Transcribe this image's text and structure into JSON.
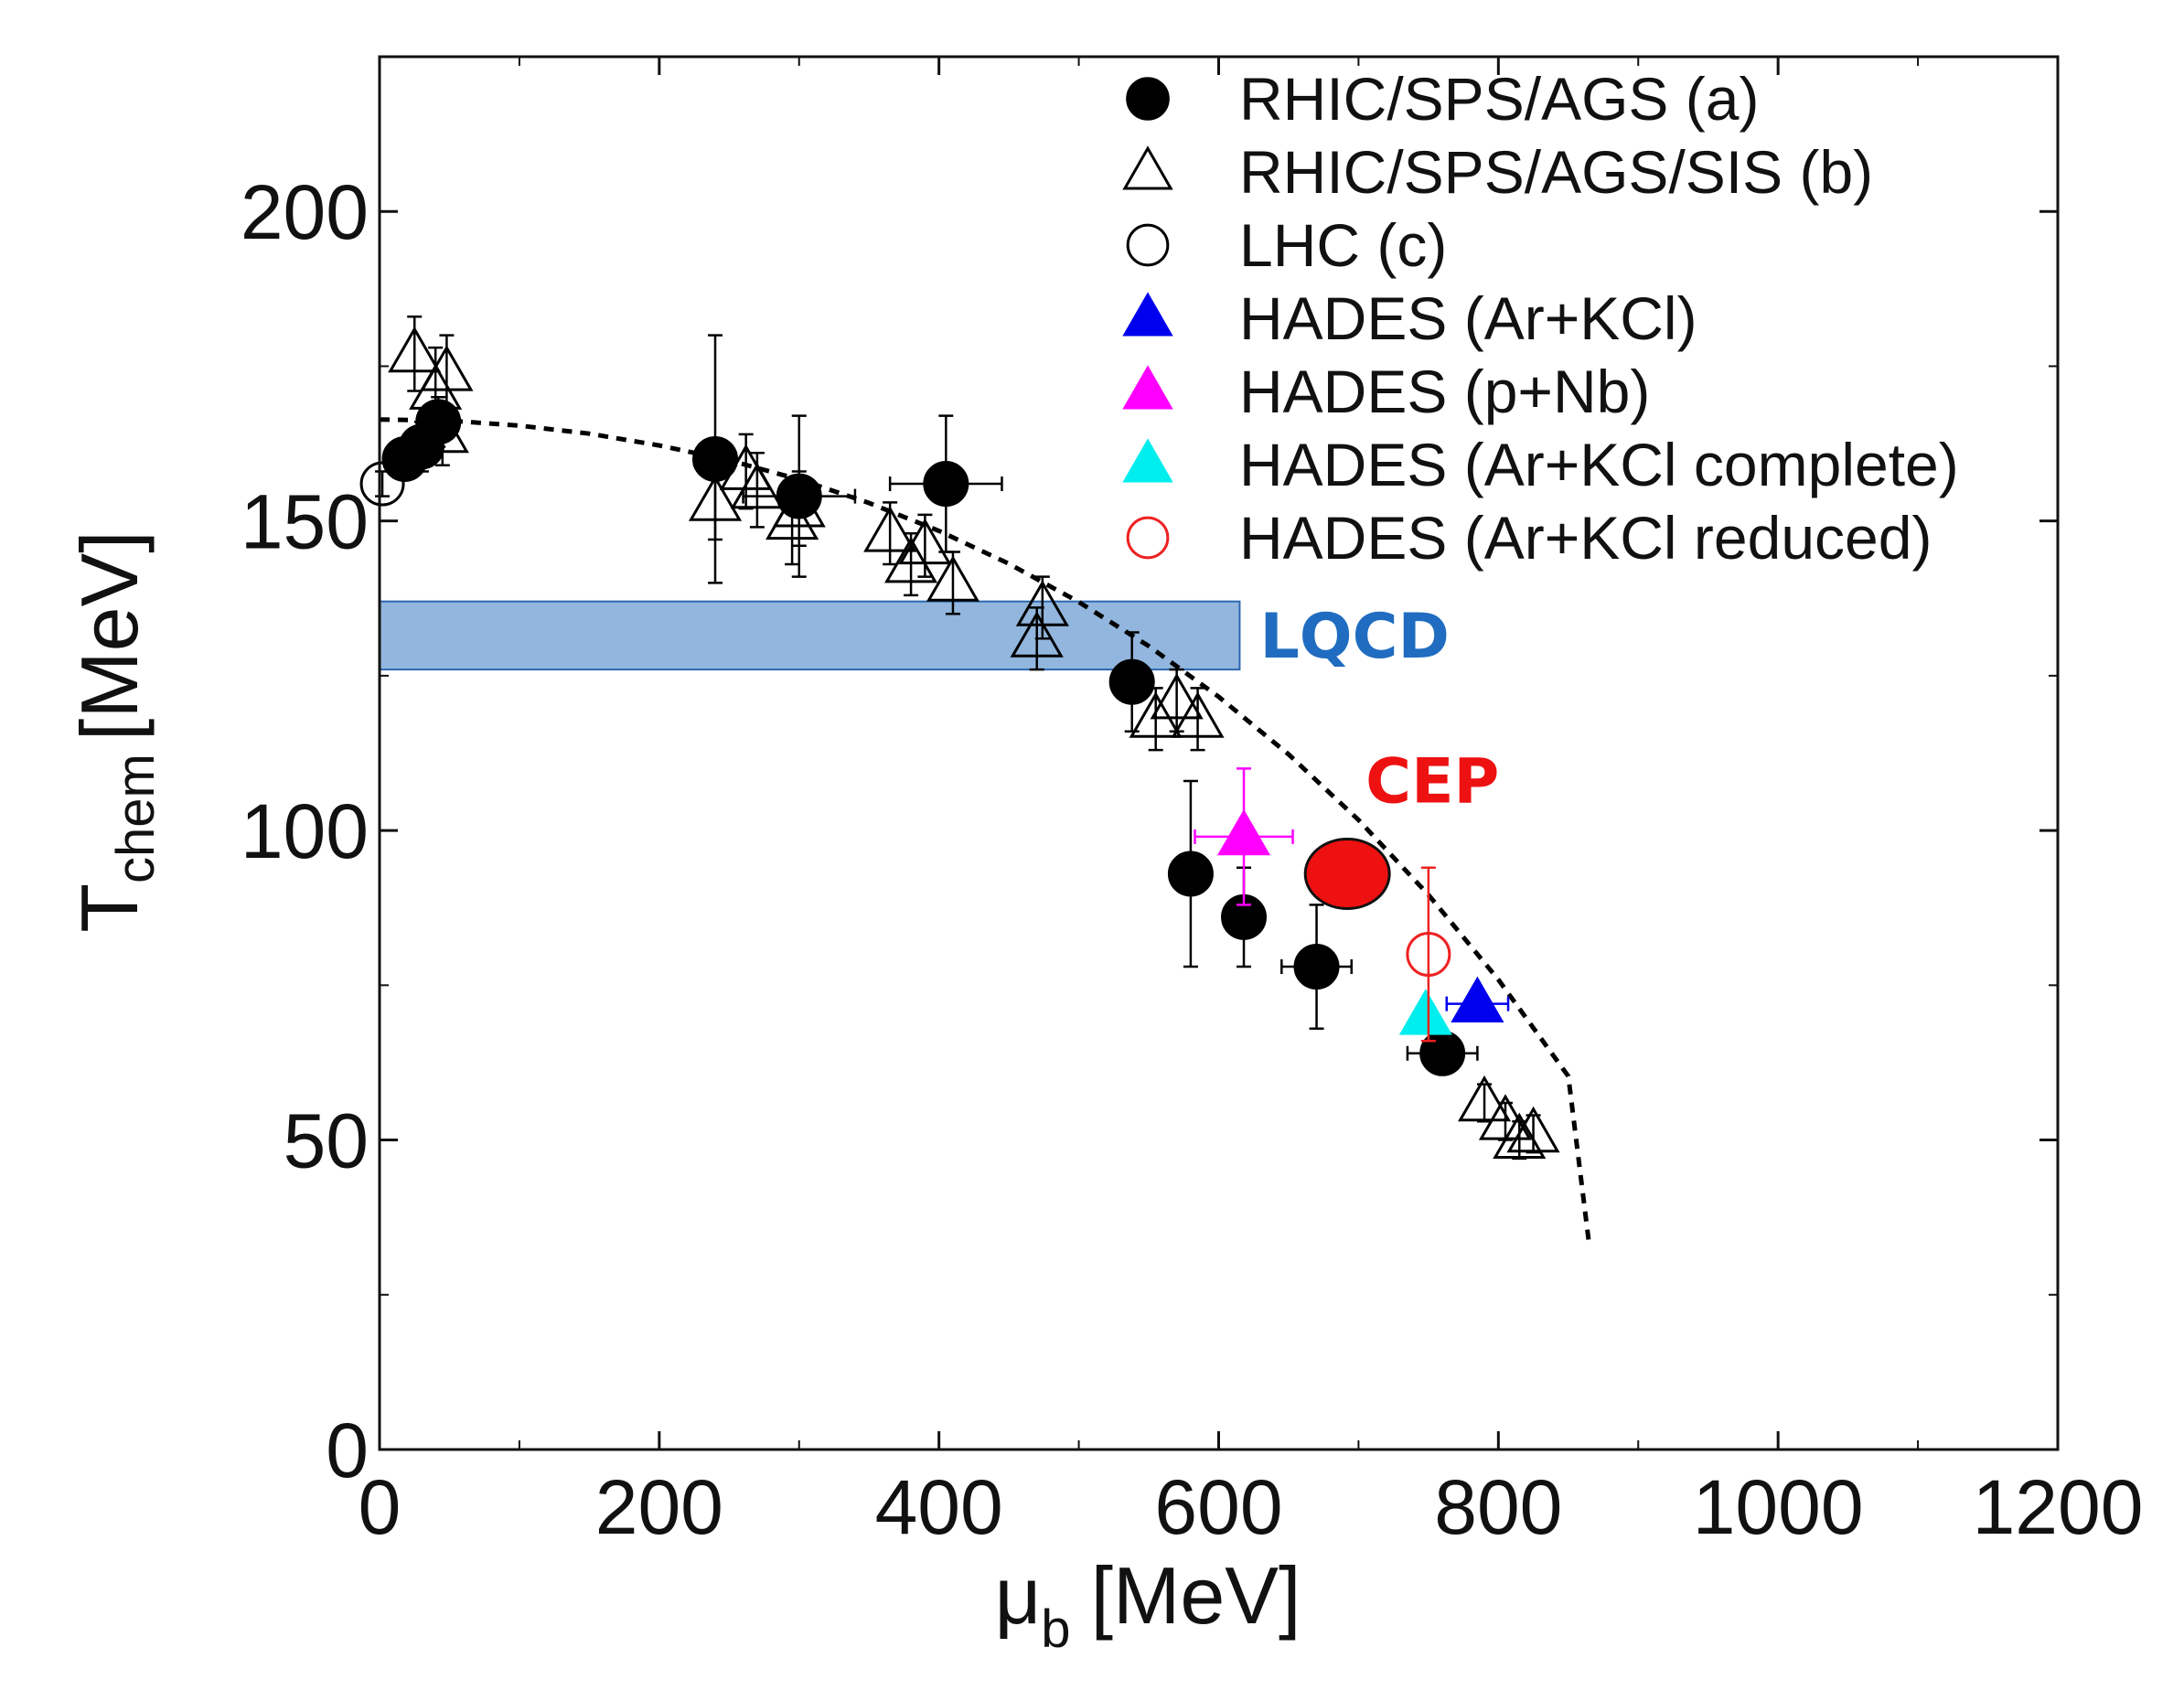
{
  "chart_data": {
    "type": "scatter",
    "xlabel": "μ",
    "xlabel_sub": "b",
    "xlabel_unit": "[MeV]",
    "ylabel": "T",
    "ylabel_sub": "chem",
    "ylabel_unit": "[MeV]",
    "xlim": [
      0,
      1200
    ],
    "ylim": [
      0,
      225
    ],
    "x_ticks": [
      0,
      200,
      400,
      600,
      800,
      1000,
      1200
    ],
    "x_tick_labels": [
      "0",
      "200",
      "400",
      "600",
      "800",
      "1000",
      "1200"
    ],
    "y_ticks": [
      0,
      50,
      100,
      150,
      200
    ],
    "y_tick_labels": [
      "0",
      "50",
      "100",
      "150",
      "200"
    ],
    "legend_position": "top-right",
    "series": [
      {
        "name": "RHIC/SPS/AGS (a)",
        "marker": "circle-filled",
        "color": "#000000",
        "points": [
          {
            "x": 18,
            "y": 160,
            "ey": 3
          },
          {
            "x": 30,
            "y": 162,
            "ey": 4
          },
          {
            "x": 42,
            "y": 166,
            "ey": 4
          },
          {
            "x": 240,
            "y": 160,
            "ey": 20,
            "ex": 15
          },
          {
            "x": 300,
            "y": 154,
            "ey": 13,
            "ex": 40
          },
          {
            "x": 405,
            "y": 156,
            "ey": 11,
            "ex": 40
          },
          {
            "x": 538,
            "y": 124,
            "ey": 8,
            "ex": 10
          },
          {
            "x": 580,
            "y": 93,
            "ey": 15,
            "ex": 8
          },
          {
            "x": 618,
            "y": 86,
            "ey": 8,
            "ex": 8
          },
          {
            "x": 670,
            "y": 78,
            "ey": 10,
            "ex": 25
          },
          {
            "x": 760,
            "y": 64,
            "ey": 3,
            "ex": 25
          }
        ]
      },
      {
        "name": "RHIC/SPS/AGS/SIS (b)",
        "marker": "triangle-open",
        "color": "#000000",
        "points": [
          {
            "x": 25,
            "y": 177,
            "ey": 6
          },
          {
            "x": 40,
            "y": 171,
            "ey": 7
          },
          {
            "x": 48,
            "y": 174,
            "ey": 6
          },
          {
            "x": 45,
            "y": 164,
            "ey": 5
          },
          {
            "x": 240,
            "y": 153,
            "ey": 6
          },
          {
            "x": 262,
            "y": 158,
            "ey": 6
          },
          {
            "x": 270,
            "y": 155,
            "ey": 6
          },
          {
            "x": 295,
            "y": 150,
            "ey": 7
          },
          {
            "x": 300,
            "y": 152,
            "ey": 6
          },
          {
            "x": 365,
            "y": 148,
            "ey": 5
          },
          {
            "x": 380,
            "y": 143,
            "ey": 5
          },
          {
            "x": 390,
            "y": 146,
            "ey": 5
          },
          {
            "x": 410,
            "y": 140,
            "ey": 5
          },
          {
            "x": 470,
            "y": 131,
            "ey": 5
          },
          {
            "x": 474,
            "y": 136,
            "ey": 5
          },
          {
            "x": 555,
            "y": 118,
            "ey": 5
          },
          {
            "x": 570,
            "y": 121,
            "ey": 5
          },
          {
            "x": 585,
            "y": 118,
            "ey": 5
          },
          {
            "x": 790,
            "y": 56,
            "ey": 3
          },
          {
            "x": 805,
            "y": 53,
            "ey": 3
          },
          {
            "x": 815,
            "y": 50,
            "ey": 3
          },
          {
            "x": 825,
            "y": 51,
            "ey": 3
          }
        ]
      },
      {
        "name": "LHC (c)",
        "marker": "circle-open",
        "color": "#000000",
        "points": [
          {
            "x": 2,
            "y": 156,
            "ey": 2
          }
        ]
      },
      {
        "name": "HADES (Ar+KCl)",
        "marker": "triangle-filled",
        "color": "#0000ee",
        "points": [
          {
            "x": 785,
            "y": 72,
            "ey": 2,
            "ex": 22
          }
        ]
      },
      {
        "name": "HADES (p+Nb)",
        "marker": "triangle-filled",
        "color": "#ff00ff",
        "points": [
          {
            "x": 618,
            "y": 99,
            "ey": 11,
            "ex": 35
          }
        ]
      },
      {
        "name": "HADES (Ar+KCl complete)",
        "marker": "triangle-filled",
        "color": "#00eeee",
        "points": [
          {
            "x": 748,
            "y": 70,
            "ey": 0,
            "ex": 0
          }
        ]
      },
      {
        "name": "HADES (Ar+KCl reduced)",
        "marker": "circle-open",
        "color": "#ee2222",
        "points": [
          {
            "x": 750,
            "y": 80,
            "ey": 14,
            "ex": 0
          }
        ]
      }
    ],
    "fit_curve": {
      "style": "dashed",
      "color": "#000000",
      "points": [
        [
          0,
          166.4
        ],
        [
          50,
          166.2
        ],
        [
          100,
          165.4
        ],
        [
          150,
          164.1
        ],
        [
          200,
          162.2
        ],
        [
          250,
          159.8
        ],
        [
          300,
          156.7
        ],
        [
          350,
          152.9
        ],
        [
          400,
          148.4
        ],
        [
          450,
          143.1
        ],
        [
          500,
          136.9
        ],
        [
          550,
          129.8
        ],
        [
          600,
          121.6
        ],
        [
          650,
          112.3
        ],
        [
          700,
          101.7
        ],
        [
          750,
          89.6
        ],
        [
          800,
          75.9
        ],
        [
          850,
          60.3
        ],
        [
          865,
          33
        ]
      ]
    },
    "bands": [
      {
        "label": "LQCD",
        "x_range": [
          0,
          615
        ],
        "y_range": [
          126,
          137
        ],
        "color": "#6d9dd2",
        "edge_color": "#2d68b0",
        "label_color": "#1f6cc0"
      }
    ],
    "annotations": [
      {
        "label": "CEP",
        "x": 692,
        "y": 93,
        "color": "#ee1111"
      }
    ]
  }
}
